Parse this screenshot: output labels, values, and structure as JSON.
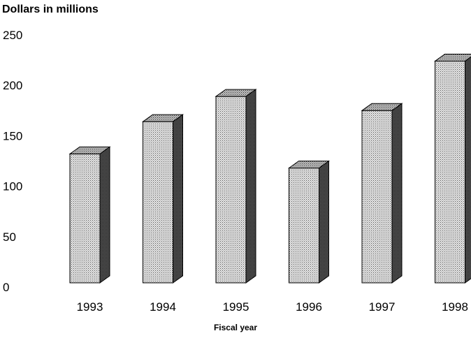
{
  "chart_data": {
    "type": "bar",
    "ylabel": "Dollars in millions",
    "xlabel": "Fiscal year",
    "categories": [
      "1993",
      "1994",
      "1995",
      "1996",
      "1997",
      "1998"
    ],
    "values": [
      132,
      164,
      189,
      118,
      175,
      224
    ],
    "ylim": [
      0,
      250
    ],
    "yticks": [
      "0",
      "50",
      "100",
      "150",
      "200",
      "250"
    ],
    "grid": false
  }
}
